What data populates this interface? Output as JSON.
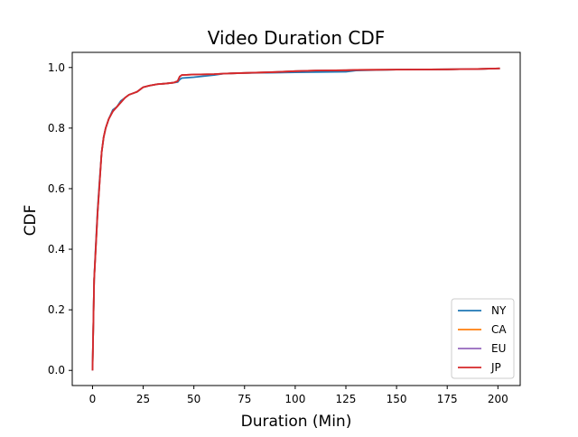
{
  "chart_data": {
    "type": "line",
    "title": "Video Duration CDF",
    "xlabel": "Duration (Min)",
    "ylabel": "CDF",
    "xlim": [
      -10,
      211
    ],
    "ylim": [
      -0.05,
      1.05
    ],
    "xticks": [
      0,
      25,
      50,
      75,
      100,
      125,
      150,
      175,
      200
    ],
    "yticks": [
      0.0,
      0.2,
      0.4,
      0.6,
      0.8,
      1.0
    ],
    "xtick_labels": [
      "0",
      "25",
      "50",
      "75",
      "100",
      "125",
      "150",
      "175",
      "200"
    ],
    "ytick_labels": [
      "0.0",
      "0.2",
      "0.4",
      "0.6",
      "0.8",
      "1.0"
    ],
    "grid": false,
    "legend_position": "lower-right",
    "series": [
      {
        "name": "NY",
        "color": "#1f77b4",
        "x": [
          0,
          0.8,
          1.5,
          2.5,
          3.5,
          4.5,
          5.5,
          6.5,
          8,
          10,
          12,
          14,
          16,
          18,
          20,
          22,
          24,
          25,
          28,
          32,
          36,
          40,
          42,
          43,
          44,
          50,
          60,
          65,
          75,
          90,
          100,
          110,
          125,
          130,
          150,
          175,
          190,
          201
        ],
        "values": [
          0.0,
          0.3,
          0.4,
          0.53,
          0.63,
          0.72,
          0.77,
          0.8,
          0.83,
          0.86,
          0.87,
          0.89,
          0.9,
          0.91,
          0.915,
          0.92,
          0.93,
          0.935,
          0.94,
          0.945,
          0.947,
          0.95,
          0.952,
          0.96,
          0.965,
          0.968,
          0.975,
          0.98,
          0.982,
          0.983,
          0.984,
          0.985,
          0.986,
          0.99,
          0.993,
          0.994,
          0.995,
          0.997
        ]
      },
      {
        "name": "CA",
        "color": "#ff7f0e",
        "x": [
          0,
          0.8,
          1.5,
          2.5,
          3.5,
          4.5,
          5.5,
          6.5,
          8,
          10,
          12,
          14,
          16,
          18,
          20,
          22,
          24,
          25,
          28,
          32,
          36,
          40,
          42,
          43,
          44,
          50,
          60,
          65,
          75,
          90,
          100,
          110,
          125,
          130,
          150,
          175,
          190,
          201
        ],
        "values": [
          0.0,
          0.3,
          0.39,
          0.52,
          0.62,
          0.72,
          0.77,
          0.8,
          0.83,
          0.855,
          0.87,
          0.885,
          0.9,
          0.91,
          0.915,
          0.92,
          0.93,
          0.935,
          0.94,
          0.945,
          0.947,
          0.95,
          0.955,
          0.97,
          0.975,
          0.977,
          0.978,
          0.98,
          0.982,
          0.985,
          0.988,
          0.99,
          0.991,
          0.992,
          0.993,
          0.994,
          0.995,
          0.997
        ]
      },
      {
        "name": "EU",
        "color": "#9467bd",
        "x": [
          0,
          0.8,
          1.5,
          2.5,
          3.5,
          4.5,
          5.5,
          6.5,
          8,
          10,
          12,
          14,
          16,
          18,
          20,
          22,
          24,
          25,
          28,
          32,
          36,
          40,
          42,
          43,
          44,
          50,
          60,
          65,
          75,
          90,
          100,
          110,
          125,
          130,
          150,
          175,
          190,
          201
        ],
        "values": [
          0.0,
          0.3,
          0.39,
          0.52,
          0.62,
          0.72,
          0.77,
          0.8,
          0.83,
          0.855,
          0.87,
          0.885,
          0.9,
          0.91,
          0.915,
          0.92,
          0.93,
          0.935,
          0.94,
          0.945,
          0.947,
          0.95,
          0.955,
          0.97,
          0.975,
          0.977,
          0.978,
          0.98,
          0.982,
          0.985,
          0.988,
          0.99,
          0.991,
          0.992,
          0.993,
          0.994,
          0.995,
          0.997
        ]
      },
      {
        "name": "JP",
        "color": "#d62728",
        "x": [
          0,
          0.8,
          1.5,
          2.5,
          3.5,
          4.5,
          5.5,
          6.5,
          8,
          10,
          12,
          14,
          16,
          18,
          20,
          22,
          24,
          25,
          28,
          32,
          36,
          40,
          42,
          43,
          44,
          50,
          60,
          65,
          75,
          90,
          100,
          110,
          125,
          130,
          150,
          175,
          190,
          201
        ],
        "values": [
          0.0,
          0.3,
          0.39,
          0.52,
          0.62,
          0.72,
          0.77,
          0.8,
          0.83,
          0.855,
          0.87,
          0.885,
          0.9,
          0.91,
          0.915,
          0.92,
          0.93,
          0.935,
          0.94,
          0.945,
          0.947,
          0.95,
          0.955,
          0.97,
          0.975,
          0.977,
          0.978,
          0.98,
          0.982,
          0.985,
          0.988,
          0.99,
          0.991,
          0.992,
          0.993,
          0.994,
          0.995,
          0.997
        ]
      }
    ]
  }
}
